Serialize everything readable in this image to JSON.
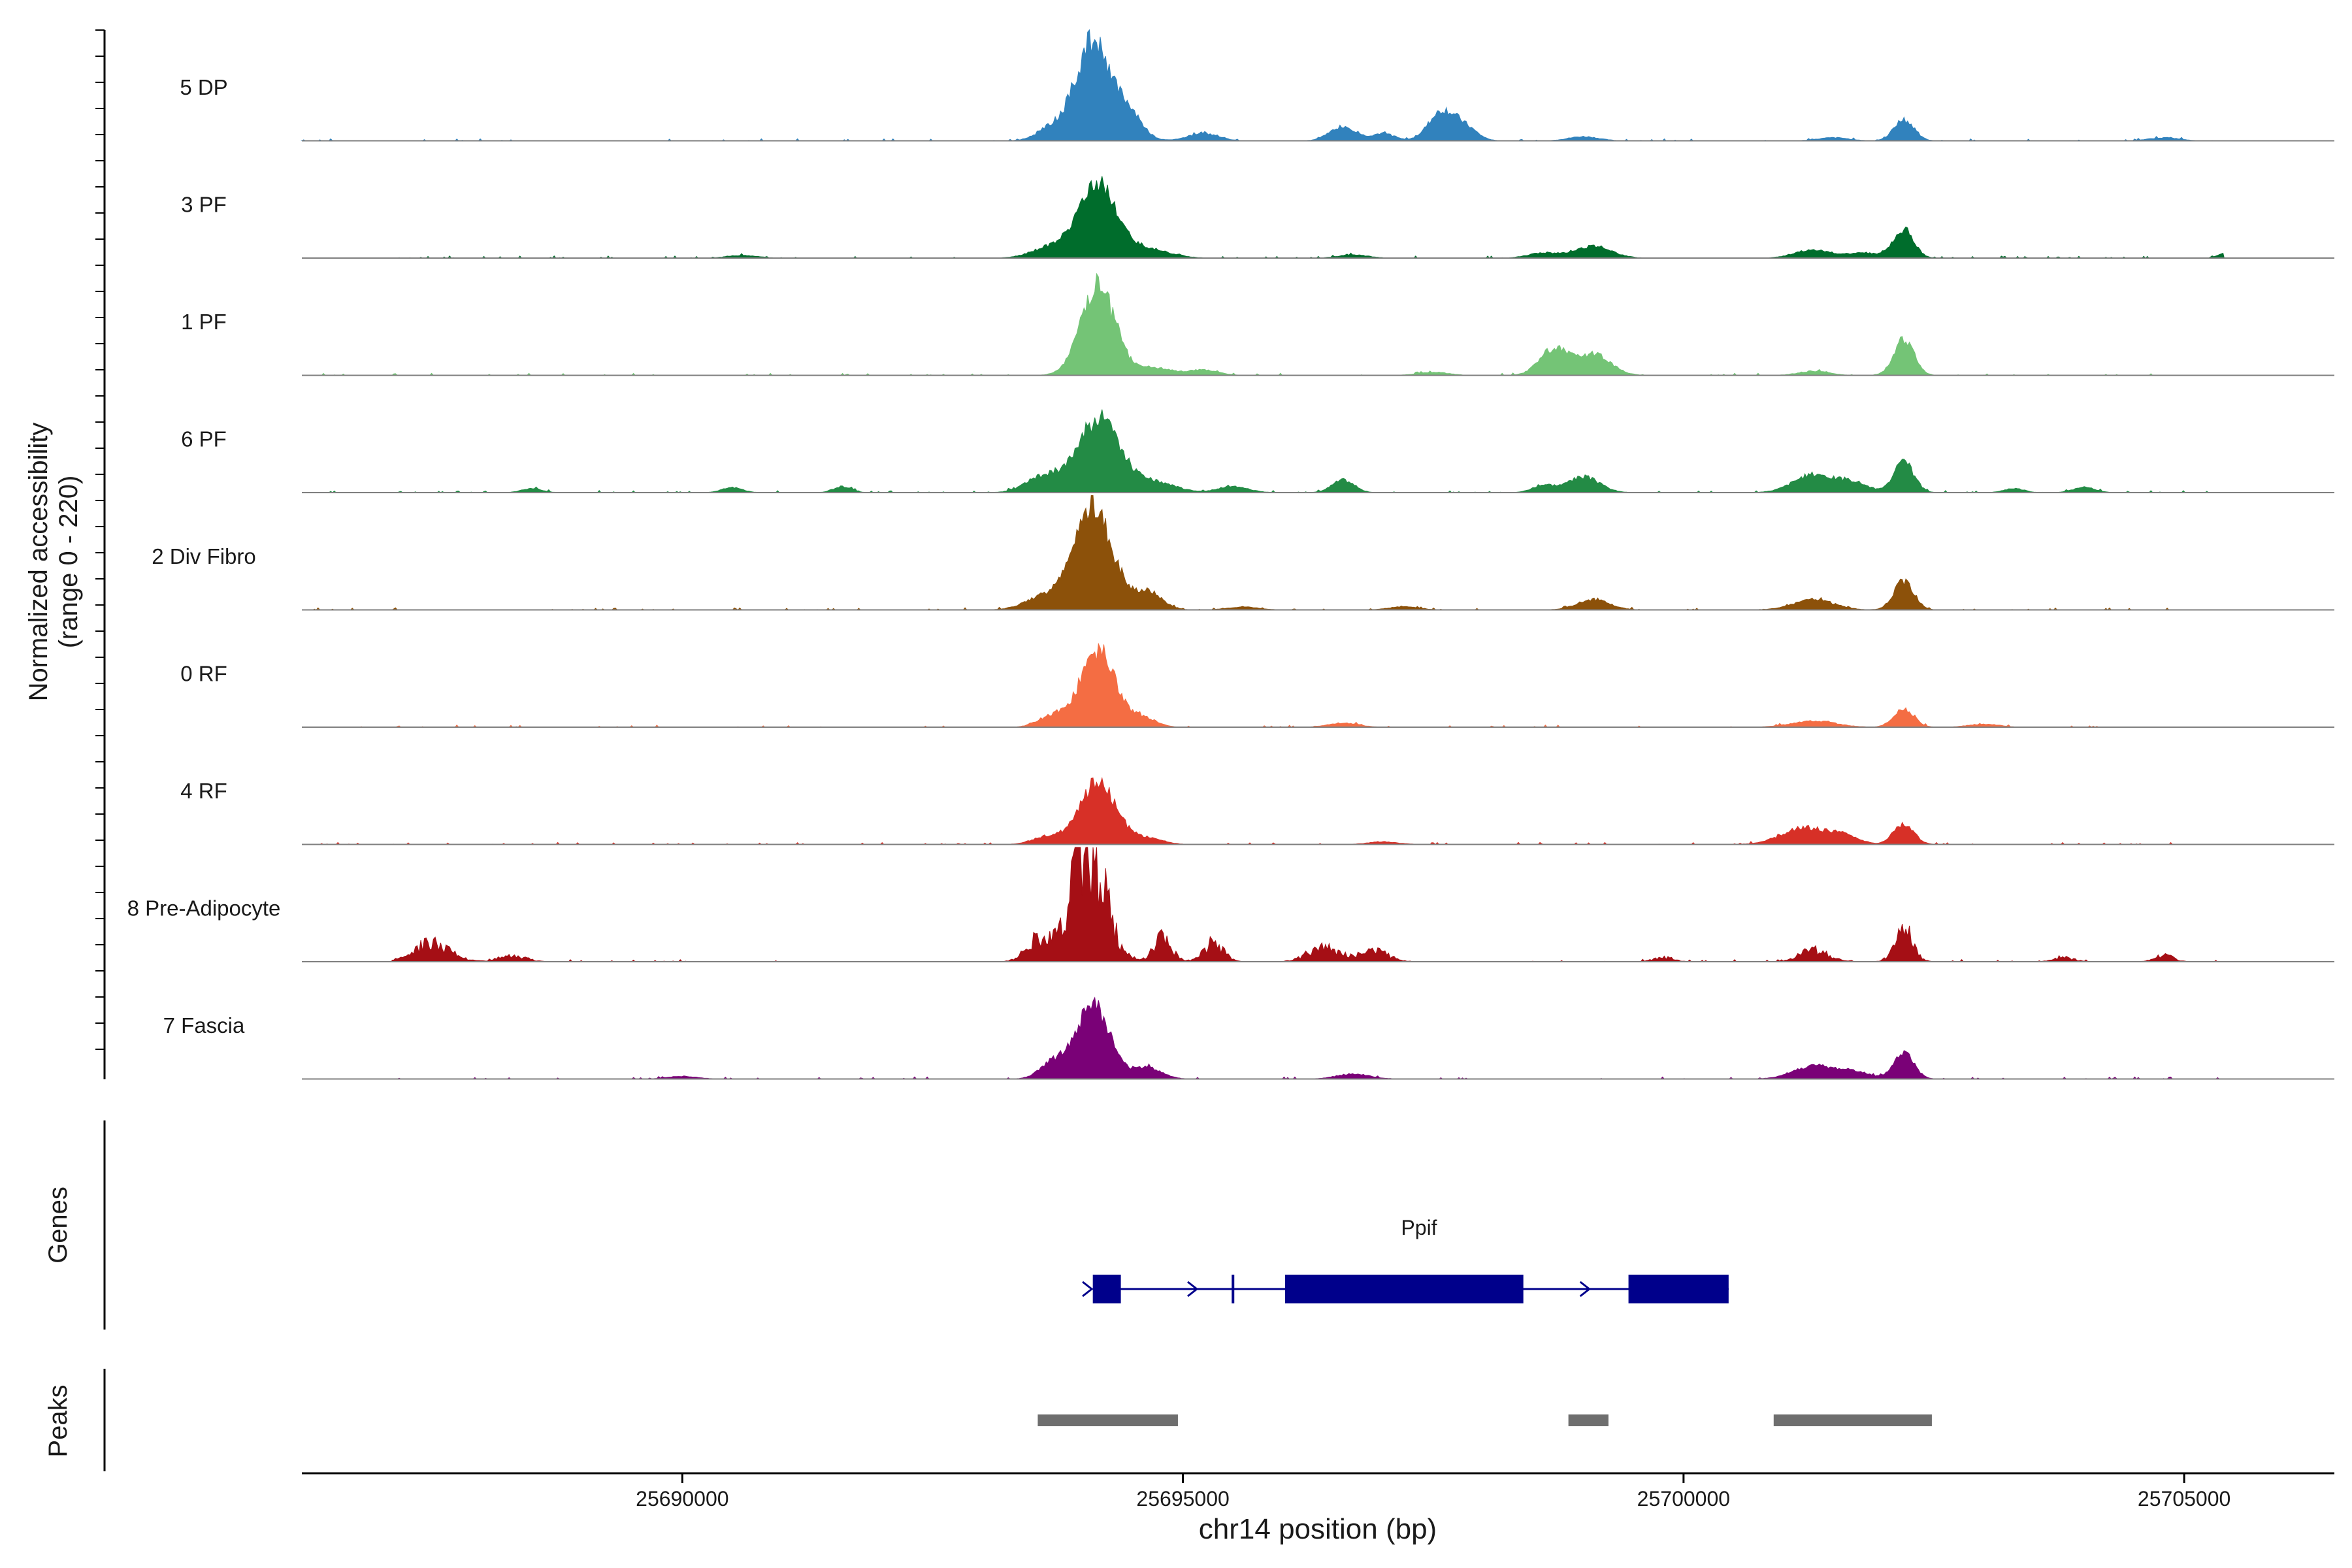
{
  "chart_data": {
    "type": "area",
    "title": "",
    "ylabel_line1": "Normalized accessibility",
    "ylabel_line2": "(range 0 - 220)",
    "ylim": [
      0,
      220
    ],
    "xlabel": "chr14 position (bp)",
    "xlim": [
      25686200,
      25706500
    ],
    "x_ticks": [
      "25690000",
      "25695000",
      "25700000",
      "25705000"
    ],
    "x_tick_values": [
      25690000,
      25695000,
      25700000,
      25705000
    ],
    "tracks": [
      {
        "name": "5 DP",
        "color": "#3182bd",
        "start": 25686200,
        "end": 25705400,
        "peaks": [
          [
            25694100,
            190,
            170
          ],
          [
            25694450,
            50,
            140
          ],
          [
            25693700,
            25,
            150
          ],
          [
            25695200,
            14,
            150
          ],
          [
            25696600,
            28,
            130
          ],
          [
            25697000,
            14,
            110
          ],
          [
            25697600,
            58,
            140
          ],
          [
            25697850,
            18,
            110
          ],
          [
            25699000,
            8,
            150
          ],
          [
            25702200,
            40,
            100
          ],
          [
            25701500,
            6,
            150
          ],
          [
            25704800,
            6,
            150
          ]
        ]
      },
      {
        "name": "3 PF",
        "color": "#006d2c",
        "start": 25686200,
        "end": 25705400,
        "peaks": [
          [
            25694150,
            140,
            200
          ],
          [
            25693650,
            18,
            180
          ],
          [
            25694700,
            14,
            200
          ],
          [
            25699100,
            22,
            180
          ],
          [
            25698600,
            10,
            150
          ],
          [
            25701300,
            16,
            180
          ],
          [
            25702200,
            55,
            100
          ],
          [
            25701800,
            10,
            150
          ],
          [
            25705400,
            10,
            60
          ],
          [
            25690600,
            5,
            150
          ],
          [
            25696700,
            6,
            150
          ]
        ]
      },
      {
        "name": "1 PF",
        "color": "#74c476",
        "start": 25686200,
        "end": 25705400,
        "peaks": [
          [
            25694150,
            170,
            170
          ],
          [
            25694700,
            15,
            180
          ],
          [
            25695200,
            10,
            150
          ],
          [
            25698700,
            50,
            140
          ],
          [
            25699100,
            40,
            170
          ],
          [
            25701300,
            8,
            150
          ],
          [
            25702200,
            70,
            100
          ],
          [
            25697500,
            6,
            150
          ]
        ]
      },
      {
        "name": "6 PF",
        "color": "#238b45",
        "start": 25686200,
        "end": 25705400,
        "peaks": [
          [
            25694150,
            140,
            210
          ],
          [
            25693600,
            30,
            170
          ],
          [
            25694700,
            20,
            220
          ],
          [
            25695500,
            12,
            150
          ],
          [
            25696600,
            24,
            110
          ],
          [
            25698600,
            14,
            110
          ],
          [
            25699000,
            30,
            160
          ],
          [
            25701300,
            35,
            200
          ],
          [
            25701700,
            18,
            150
          ],
          [
            25702200,
            58,
            100
          ],
          [
            25688500,
            8,
            100
          ],
          [
            25690500,
            10,
            100
          ],
          [
            25691600,
            12,
            90
          ],
          [
            25704000,
            10,
            110
          ],
          [
            25703300,
            8,
            100
          ]
        ]
      },
      {
        "name": "2 Div Fibro",
        "color": "#8c510a",
        "start": 25686200,
        "end": 25705400,
        "peaks": [
          [
            25694100,
            200,
            190
          ],
          [
            25693600,
            25,
            180
          ],
          [
            25694650,
            35,
            140
          ],
          [
            25699100,
            20,
            160
          ],
          [
            25701300,
            20,
            200
          ],
          [
            25702200,
            55,
            100
          ],
          [
            25695600,
            6,
            150
          ],
          [
            25697200,
            6,
            150
          ]
        ]
      },
      {
        "name": "0 RF",
        "color": "#f46d43",
        "start": 25686200,
        "end": 25705400,
        "peaks": [
          [
            25694150,
            150,
            170
          ],
          [
            25693700,
            22,
            140
          ],
          [
            25694600,
            18,
            130
          ],
          [
            25696600,
            8,
            150
          ],
          [
            25701300,
            12,
            220
          ],
          [
            25702200,
            35,
            100
          ],
          [
            25703000,
            6,
            150
          ]
        ]
      },
      {
        "name": "4 RF",
        "color": "#d73027",
        "start": 25686200,
        "end": 25705000,
        "peaks": [
          [
            25694150,
            120,
            180
          ],
          [
            25693650,
            15,
            150
          ],
          [
            25694650,
            12,
            150
          ],
          [
            25701200,
            32,
            220
          ],
          [
            25701600,
            15,
            150
          ],
          [
            25702200,
            40,
            100
          ],
          [
            25697000,
            5,
            150
          ]
        ]
      },
      {
        "name": "8 Pre-Adipocyte",
        "color": "#a50f15",
        "start": 25687100,
        "end": 25705400,
        "spiky": true,
        "peaks": [
          [
            25694050,
            215,
            170
          ],
          [
            25693550,
            40,
            120
          ],
          [
            25694800,
            45,
            90
          ],
          [
            25695300,
            35,
            100
          ],
          [
            25696400,
            28,
            150
          ],
          [
            25696900,
            20,
            150
          ],
          [
            25687500,
            35,
            180
          ],
          [
            25688300,
            12,
            130
          ],
          [
            25702200,
            60,
            90
          ],
          [
            25701300,
            22,
            140
          ],
          [
            25704800,
            12,
            90
          ],
          [
            25699800,
            8,
            100
          ],
          [
            25703800,
            8,
            100
          ]
        ]
      },
      {
        "name": "7 Fascia",
        "color": "#7a0177",
        "start": 25686200,
        "end": 25705400,
        "peaks": [
          [
            25694100,
            140,
            170
          ],
          [
            25693700,
            30,
            130
          ],
          [
            25694650,
            22,
            140
          ],
          [
            25696700,
            10,
            160
          ],
          [
            25701300,
            25,
            200
          ],
          [
            25701700,
            14,
            150
          ],
          [
            25702200,
            50,
            100
          ],
          [
            25690000,
            5,
            150
          ]
        ]
      }
    ],
    "genes_label": "Genes",
    "gene": {
      "name": "Ppif",
      "color": "#00008b",
      "start": 25694100,
      "end": 25700450,
      "exons": [
        [
          25694100,
          25694380
        ],
        [
          25696020,
          25698400
        ],
        [
          25699450,
          25700450
        ]
      ],
      "small_exon": 25695500,
      "arrows": [
        25694050,
        25695100,
        25699020
      ]
    },
    "peaks_label": "Peaks",
    "peak_regions": [
      [
        25693550,
        25694950
      ],
      [
        25698850,
        25699250
      ],
      [
        25700900,
        25702480
      ]
    ],
    "peak_color": "#6e6e6e"
  }
}
